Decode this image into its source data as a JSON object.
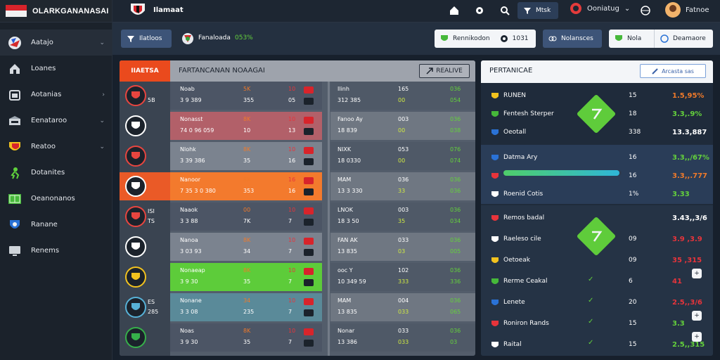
{
  "brand": {
    "name": "OLARKGANANASAI"
  },
  "sidebar": {
    "items": [
      {
        "label": "Aatajo",
        "chevron": true,
        "icon": "world-cup-ball-icon"
      },
      {
        "label": "Loanes",
        "chevron": false,
        "icon": "home-icon"
      },
      {
        "label": "Aotanias",
        "chevron": true,
        "icon": "calendar-icon"
      },
      {
        "label": "Eenataroo",
        "chevron": true,
        "icon": "stadium-icon"
      },
      {
        "label": "Reatoo",
        "chevron": true,
        "icon": "red-crest-icon"
      },
      {
        "label": "Dotanites",
        "chevron": false,
        "icon": "player-icon"
      },
      {
        "label": "Oeanonanos",
        "chevron": false,
        "icon": "pitch-icon"
      },
      {
        "label": "Ranane",
        "chevron": false,
        "icon": "shield-icon"
      },
      {
        "label": "Renems",
        "chevron": false,
        "icon": "monitor-icon"
      }
    ]
  },
  "header": {
    "title": "Ilamaat",
    "search_button": "Mtsk",
    "user_label": "Ooniatug",
    "profile_label": "Fatnoe"
  },
  "subbar": {
    "tab_label": "Ilatloos",
    "score_text": "Fanaloada",
    "score_pct": "053%",
    "pill1_text": "Rennikodon",
    "pill1_value": "1031",
    "pill2_text": "Nolansces",
    "pill3_text": "Nola",
    "pill4_text": "Deamaore"
  },
  "board": {
    "tag": "IIAETSA",
    "title": "FARTANCANAN NOAAGAI",
    "btn_label": "REALIVE",
    "rows": [
      {
        "cl": "",
        "ct": "5B",
        "n1": "Noab",
        "n2": "3 9 389",
        "c1": "5K",
        "c1b": "355",
        "c2": "10",
        "c2b": "05",
        "r1": "Ilinh",
        "r2": "312 385",
        "v1": "165",
        "v1b": "00",
        "v2": "036",
        "v2b": "054"
      },
      {
        "cl": "",
        "ct": "",
        "n1": "Nonasst",
        "n2": "74 0 96 059",
        "c1": "8K",
        "c1b": "10",
        "c2": "10",
        "c2b": "13",
        "r1": "Fanoo Ay",
        "r2": "18 839",
        "v1": "003",
        "v1b": "00",
        "v2": "036",
        "v2b": "038"
      },
      {
        "cl": "",
        "ct": "",
        "n1": "Nlohk",
        "n2": "3 39 386",
        "c1": "8K",
        "c1b": "35",
        "c2": "10",
        "c2b": "16",
        "r1": "NIXK",
        "r2": "18 0330",
        "v1": "053",
        "v1b": "00",
        "v2": "076",
        "v2b": "074"
      },
      {
        "cl": "",
        "ct": "",
        "n1": "Nanoor",
        "n2": "7 35 3 0 380",
        "c1": "8K",
        "c1b": "353",
        "c2": "16",
        "c2b": "16",
        "r1": "MAM",
        "r2": "13 3 330",
        "v1": "036",
        "v1b": "33",
        "v2": "036",
        "v2b": "036"
      },
      {
        "cl": "ISI",
        "ct": "TS",
        "n1": "Naaok",
        "n2": "3 3 88",
        "c1": "00",
        "c1b": "7K",
        "c2": "10",
        "c2b": "7",
        "r1": "LNOK",
        "r2": "18 3 50",
        "v1": "003",
        "v1b": "35",
        "v2": "036",
        "v2b": "034"
      },
      {
        "cl": "",
        "ct": "",
        "n1": "Nanoa",
        "n2": "3 03 93",
        "c1": "8K",
        "c1b": "34",
        "c2": "10",
        "c2b": "7",
        "r1": "FAN AK",
        "r2": "13 835",
        "v1": "033",
        "v1b": "03",
        "v2": "036",
        "v2b": "005"
      },
      {
        "cl": "",
        "ct": "",
        "n1": "Nonaeap",
        "n2": "3 9 30",
        "c1": "8K",
        "c1b": "35",
        "c2": "10",
        "c2b": "7",
        "r1": "ooc Y",
        "r2": "10 349 59",
        "v1": "102",
        "v1b": "333",
        "v2": "036",
        "v2b": "336"
      },
      {
        "cl": "ES",
        "ct": "285",
        "n1": "Nonane",
        "n2": "3 3 08",
        "c1": "34",
        "c1b": "235",
        "c2": "10",
        "c2b": "7",
        "r1": "MAM",
        "r2": "13 835",
        "v1": "004",
        "v1b": "033",
        "v2": "036",
        "v2b": "065"
      },
      {
        "cl": "",
        "ct": "",
        "n1": "Noas",
        "n2": "3 9 30",
        "c1": "8K",
        "c1b": "35",
        "c2": "10",
        "c2b": "7",
        "r1": "Nonar",
        "r2": "13 386",
        "v1": "033",
        "v1b": "033",
        "v2": "036",
        "v2b": "03"
      }
    ]
  },
  "panel": {
    "title": "PERTANICAE",
    "btn_label": "Arcasta sas",
    "rows1": [
      {
        "name": "RUNEN",
        "mid": "15",
        "val": "1.5,95%",
        "color": "#f07a2a"
      },
      {
        "name": "Fentesh Sterper",
        "mid": "18",
        "val": "3.3,.9%",
        "color": "#64d13c"
      },
      {
        "name": "Oeotall",
        "mid": "338",
        "val": "13.3,887",
        "color": "#ffffff"
      }
    ],
    "rows2": [
      {
        "name": "Datma Ary",
        "mid": "16",
        "val": "3.3,,/67%",
        "color": "#64d13c"
      },
      {
        "name": "",
        "mid": "16",
        "val": "3.3,,.777",
        "color": "#f07a2a"
      },
      {
        "name": "Roenid Cotis",
        "mid": "1%",
        "val": "3.33",
        "color": "#64d13c"
      }
    ],
    "rows3": [
      {
        "name": "Remos badal",
        "mid": "",
        "val": "3.43,,3/6",
        "color": "#ffffff"
      },
      {
        "name": "Raeleso cile",
        "mid": "09",
        "val": "3.9 ,3.9",
        "color": "#e7343b"
      },
      {
        "name": "Oetoeak",
        "mid": "09",
        "val": "35 ,315",
        "color": "#e7343b"
      },
      {
        "name": "Rerme Ceakal",
        "mid": "6",
        "val": "41",
        "color": "#e7343b"
      },
      {
        "name": "Lenete",
        "mid": "20",
        "val": "2.5,,3/6",
        "color": "#e7343b"
      },
      {
        "name": "Roniron Rands",
        "mid": "15",
        "val": "3.3",
        "color": "#64d13c"
      },
      {
        "name": "Raital",
        "mid": "15",
        "val": "2.5,,315",
        "color": "#64d13c"
      }
    ],
    "progress": 0.98
  }
}
